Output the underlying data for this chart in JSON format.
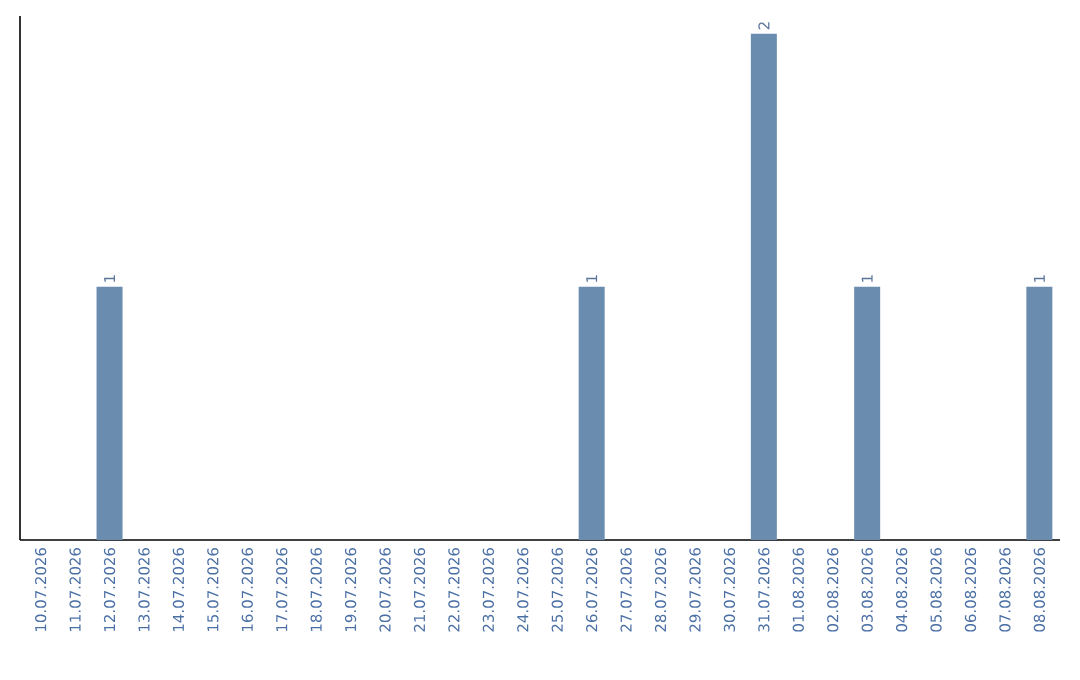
{
  "chart_data": {
    "type": "bar",
    "categories": [
      "10.07.2026",
      "11.07.2026",
      "12.07.2026",
      "13.07.2026",
      "14.07.2026",
      "15.07.2026",
      "16.07.2026",
      "17.07.2026",
      "18.07.2026",
      "19.07.2026",
      "20.07.2026",
      "21.07.2026",
      "22.07.2026",
      "23.07.2026",
      "24.07.2026",
      "25.07.2026",
      "26.07.2026",
      "27.07.2026",
      "28.07.2026",
      "29.07.2026",
      "30.07.2026",
      "31.07.2026",
      "01.08.2026",
      "02.08.2026",
      "03.08.2026",
      "04.08.2026",
      "05.08.2026",
      "06.08.2026",
      "07.08.2026",
      "08.08.2026"
    ],
    "values": [
      0,
      0,
      1,
      0,
      0,
      0,
      0,
      0,
      0,
      0,
      0,
      0,
      0,
      0,
      0,
      0,
      1,
      0,
      0,
      0,
      0,
      2,
      0,
      0,
      1,
      0,
      0,
      0,
      0,
      1
    ],
    "value_labels": [
      null,
      null,
      "1",
      null,
      null,
      null,
      null,
      null,
      null,
      null,
      null,
      null,
      null,
      null,
      null,
      null,
      "1",
      null,
      null,
      null,
      null,
      "2",
      null,
      null,
      "1",
      null,
      null,
      null,
      null,
      "1"
    ],
    "color": "#6a8caf"
  }
}
